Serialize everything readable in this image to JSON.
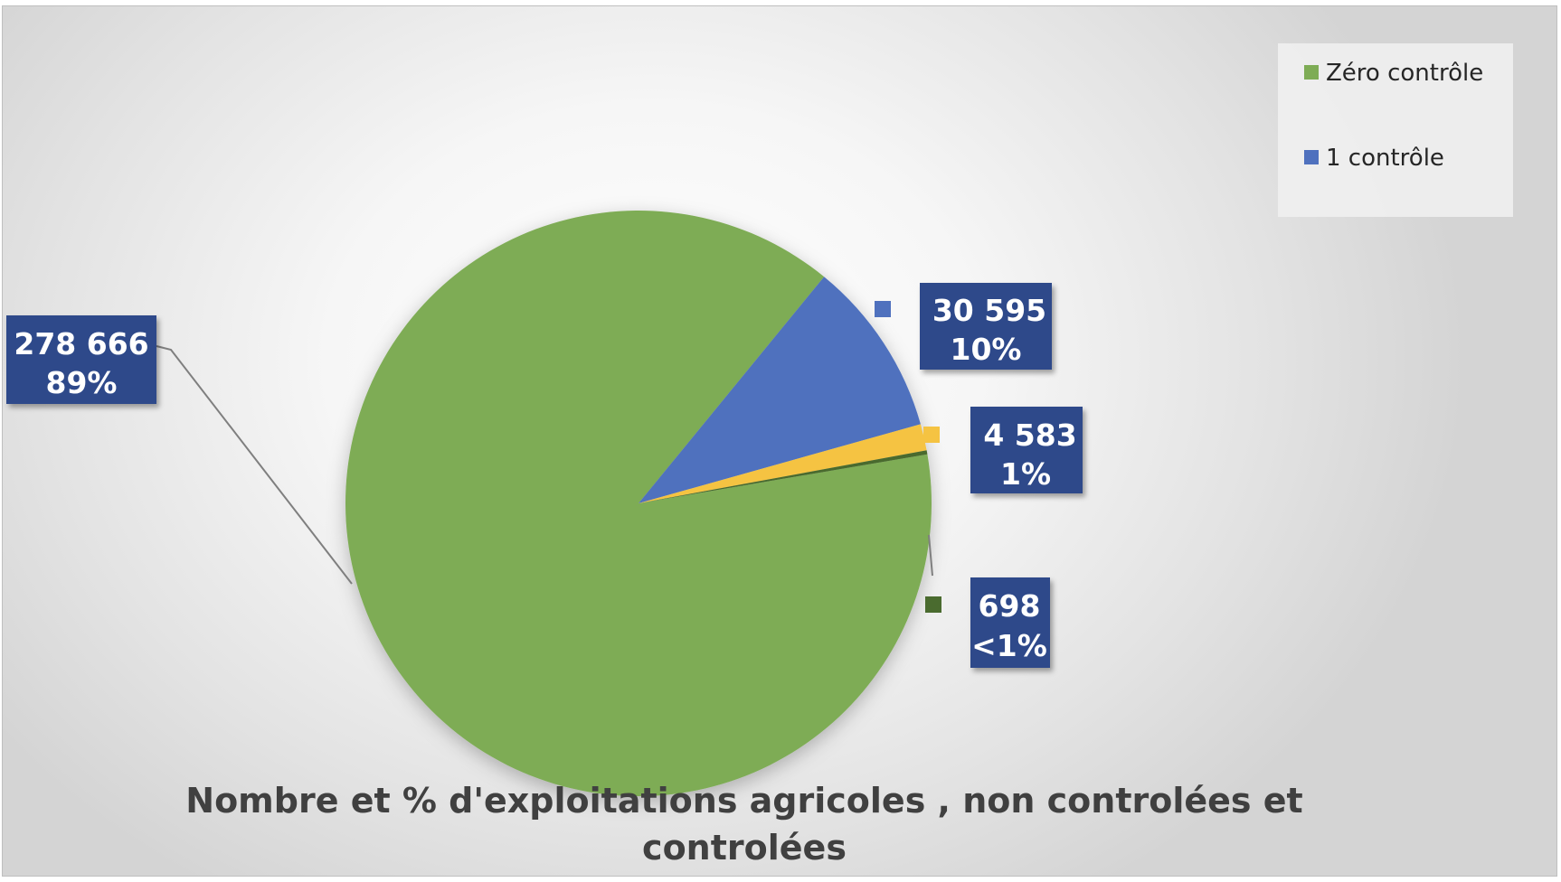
{
  "chart_data": {
    "type": "pie",
    "title_lines": [
      "Nombre et % d'exploitations agricoles , non controlées et",
      "controlées"
    ],
    "legend": {
      "placement": "top-right",
      "entries": [
        "Zéro  contrôle",
        "1 contrôle"
      ]
    },
    "slices": [
      {
        "value": 278666,
        "value_label": "278 666",
        "percent_label": "89%",
        "color": "#7EAC55"
      },
      {
        "value": 30595,
        "value_label": "30 595",
        "percent_label": "10%",
        "color": "#4F71BE"
      },
      {
        "value": 4583,
        "value_label": "4 583",
        "percent_label": "1%",
        "color": "#F5C342"
      },
      {
        "value": 698,
        "value_label": "698",
        "percent_label": "<1%",
        "color": "#4A6B2F"
      }
    ],
    "label_box_color": "#2F4A8A"
  }
}
